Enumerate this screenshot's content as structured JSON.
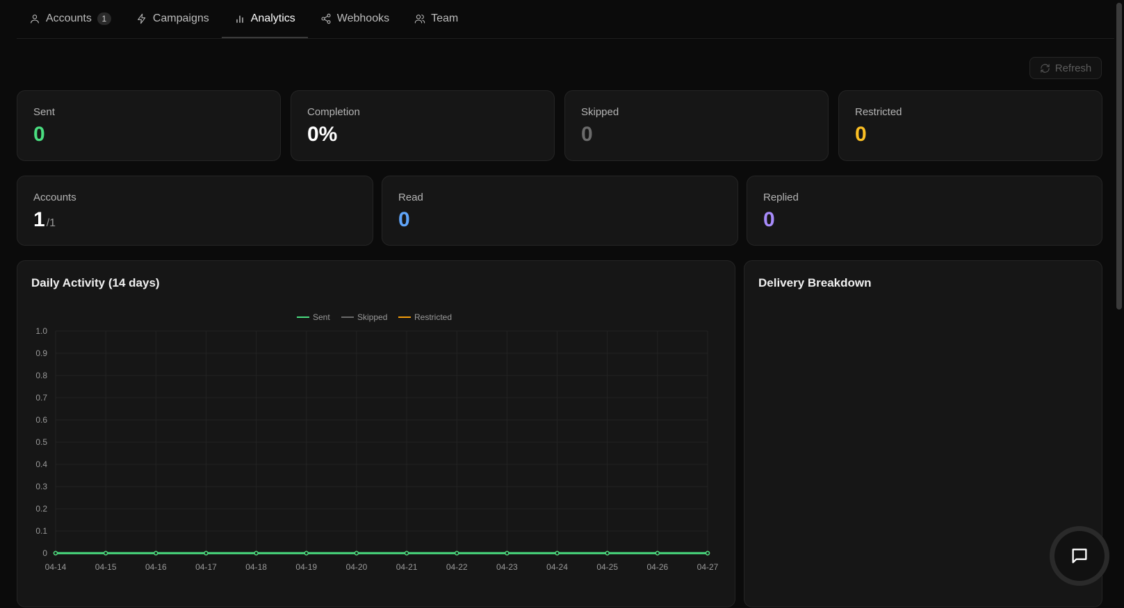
{
  "tabs": [
    {
      "label": "Accounts",
      "badge": "1",
      "icon": "user-icon",
      "active": false
    },
    {
      "label": "Campaigns",
      "icon": "bolt-icon",
      "active": false
    },
    {
      "label": "Analytics",
      "icon": "bar-chart-icon",
      "active": true
    },
    {
      "label": "Webhooks",
      "icon": "share-icon",
      "active": false
    },
    {
      "label": "Team",
      "icon": "users-icon",
      "active": false
    }
  ],
  "toolbar": {
    "refresh_label": "Refresh",
    "refresh_icon": "refresh-icon"
  },
  "stats_row1": [
    {
      "label": "Sent",
      "value": "0",
      "color": "#4ade80"
    },
    {
      "label": "Completion",
      "value": "0%",
      "color": "#ffffff"
    },
    {
      "label": "Skipped",
      "value": "0",
      "color": "#6b6b6b"
    },
    {
      "label": "Restricted",
      "value": "0",
      "color": "#fbbf24"
    }
  ],
  "stats_row2": [
    {
      "label": "Accounts",
      "value": "1",
      "suffix": "/1",
      "color": "#ffffff"
    },
    {
      "label": "Read",
      "value": "0",
      "color": "#60a5fa"
    },
    {
      "label": "Replied",
      "value": "0",
      "color": "#a78bfa"
    }
  ],
  "daily_activity": {
    "title": "Daily Activity (14 days)"
  },
  "delivery_breakdown": {
    "title": "Delivery Breakdown"
  },
  "chat": {
    "icon": "message-square-icon"
  },
  "chart_data": {
    "type": "line",
    "title": "Daily Activity (14 days)",
    "x": [
      "04-14",
      "04-15",
      "04-16",
      "04-17",
      "04-18",
      "04-19",
      "04-20",
      "04-21",
      "04-22",
      "04-23",
      "04-24",
      "04-25",
      "04-26",
      "04-27"
    ],
    "series": [
      {
        "name": "Sent",
        "color": "#4ade80",
        "values": [
          0,
          0,
          0,
          0,
          0,
          0,
          0,
          0,
          0,
          0,
          0,
          0,
          0,
          0
        ]
      },
      {
        "name": "Skipped",
        "color": "#6b6b6b",
        "values": [
          0,
          0,
          0,
          0,
          0,
          0,
          0,
          0,
          0,
          0,
          0,
          0,
          0,
          0
        ]
      },
      {
        "name": "Restricted",
        "color": "#f59e0b",
        "values": [
          0,
          0,
          0,
          0,
          0,
          0,
          0,
          0,
          0,
          0,
          0,
          0,
          0,
          0
        ]
      }
    ],
    "ylim": [
      0,
      1
    ],
    "yticks": [
      "0",
      "0.1",
      "0.2",
      "0.3",
      "0.4",
      "0.5",
      "0.6",
      "0.7",
      "0.8",
      "0.9",
      "1.0"
    ],
    "grid": true,
    "legend": "top-center"
  }
}
